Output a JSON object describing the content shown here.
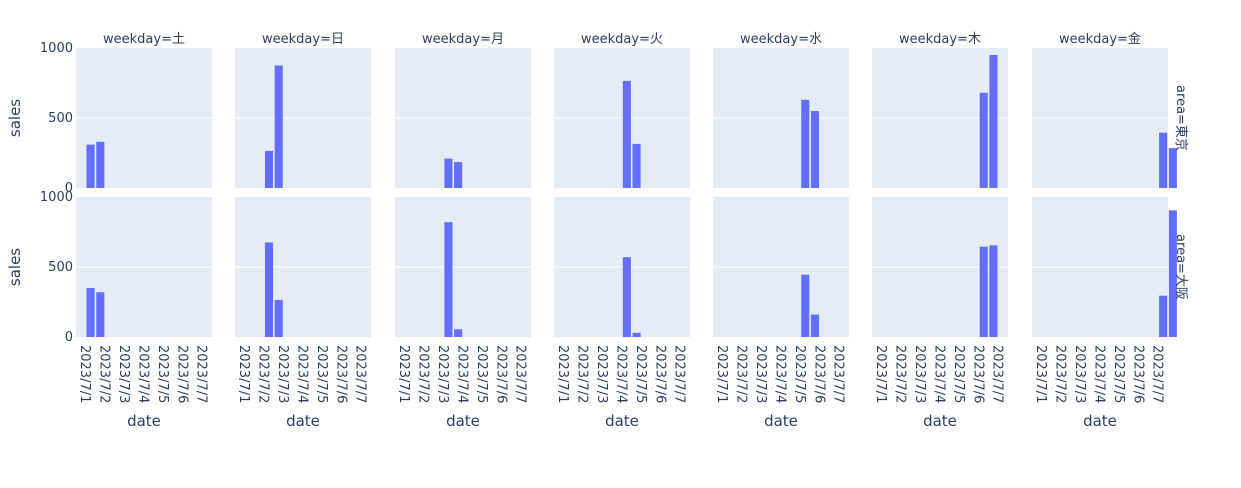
{
  "chart_data": {
    "type": "bar",
    "facet_col": "weekday",
    "facet_row": "area",
    "columns": [
      "weekday=土",
      "weekday=日",
      "weekday=月",
      "weekday=火",
      "weekday=水",
      "weekday=木",
      "weekday=金"
    ],
    "rows": [
      "area=東京",
      "area=大阪"
    ],
    "xlabel": "date",
    "ylabel": "sales",
    "x_ticks": [
      "2023/7/1",
      "2023/7/2",
      "2023/7/3",
      "2023/7/4",
      "2023/7/5",
      "2023/7/6",
      "2023/7/7"
    ],
    "y_ticks": [
      "0",
      "500",
      "1000"
    ],
    "ylim": [
      0,
      1000
    ],
    "grid": true,
    "bar_color": "#636efa",
    "plot_bg": "#e5ecf6",
    "panels": [
      {
        "row": 0,
        "col": 0,
        "bars": [
          {
            "x": "2023/7/1 06:00",
            "y": 310
          },
          {
            "x": "2023/7/1 18:00",
            "y": 330
          }
        ]
      },
      {
        "row": 0,
        "col": 1,
        "bars": [
          {
            "x": "2023/7/2 06:00",
            "y": 265
          },
          {
            "x": "2023/7/2 18:00",
            "y": 875
          }
        ]
      },
      {
        "row": 0,
        "col": 2,
        "bars": [
          {
            "x": "2023/7/3 06:00",
            "y": 210
          },
          {
            "x": "2023/7/3 18:00",
            "y": 185
          }
        ]
      },
      {
        "row": 0,
        "col": 3,
        "bars": [
          {
            "x": "2023/7/4 06:00",
            "y": 765
          },
          {
            "x": "2023/7/4 18:00",
            "y": 315
          }
        ]
      },
      {
        "row": 0,
        "col": 4,
        "bars": [
          {
            "x": "2023/7/5 06:00",
            "y": 630
          },
          {
            "x": "2023/7/5 18:00",
            "y": 550
          }
        ]
      },
      {
        "row": 0,
        "col": 5,
        "bars": [
          {
            "x": "2023/7/6 06:00",
            "y": 680
          },
          {
            "x": "2023/7/6 18:00",
            "y": 950
          }
        ]
      },
      {
        "row": 0,
        "col": 6,
        "bars": [
          {
            "x": "2023/7/7 06:00",
            "y": 395
          },
          {
            "x": "2023/7/7 18:00",
            "y": 285
          }
        ]
      },
      {
        "row": 1,
        "col": 0,
        "bars": [
          {
            "x": "2023/7/1 06:00",
            "y": 350
          },
          {
            "x": "2023/7/1 18:00",
            "y": 320
          }
        ]
      },
      {
        "row": 1,
        "col": 1,
        "bars": [
          {
            "x": "2023/7/2 06:00",
            "y": 675
          },
          {
            "x": "2023/7/2 18:00",
            "y": 265
          }
        ]
      },
      {
        "row": 1,
        "col": 2,
        "bars": [
          {
            "x": "2023/7/3 06:00",
            "y": 820
          },
          {
            "x": "2023/7/3 18:00",
            "y": 55
          }
        ]
      },
      {
        "row": 1,
        "col": 3,
        "bars": [
          {
            "x": "2023/7/4 06:00",
            "y": 570
          },
          {
            "x": "2023/7/4 18:00",
            "y": 30
          }
        ]
      },
      {
        "row": 1,
        "col": 4,
        "bars": [
          {
            "x": "2023/7/5 06:00",
            "y": 445
          },
          {
            "x": "2023/7/5 18:00",
            "y": 160
          }
        ]
      },
      {
        "row": 1,
        "col": 5,
        "bars": [
          {
            "x": "2023/7/6 06:00",
            "y": 645
          },
          {
            "x": "2023/7/6 18:00",
            "y": 655
          }
        ]
      },
      {
        "row": 1,
        "col": 6,
        "bars": [
          {
            "x": "2023/7/7 06:00",
            "y": 295
          },
          {
            "x": "2023/7/7 18:00",
            "y": 905
          }
        ]
      }
    ]
  }
}
